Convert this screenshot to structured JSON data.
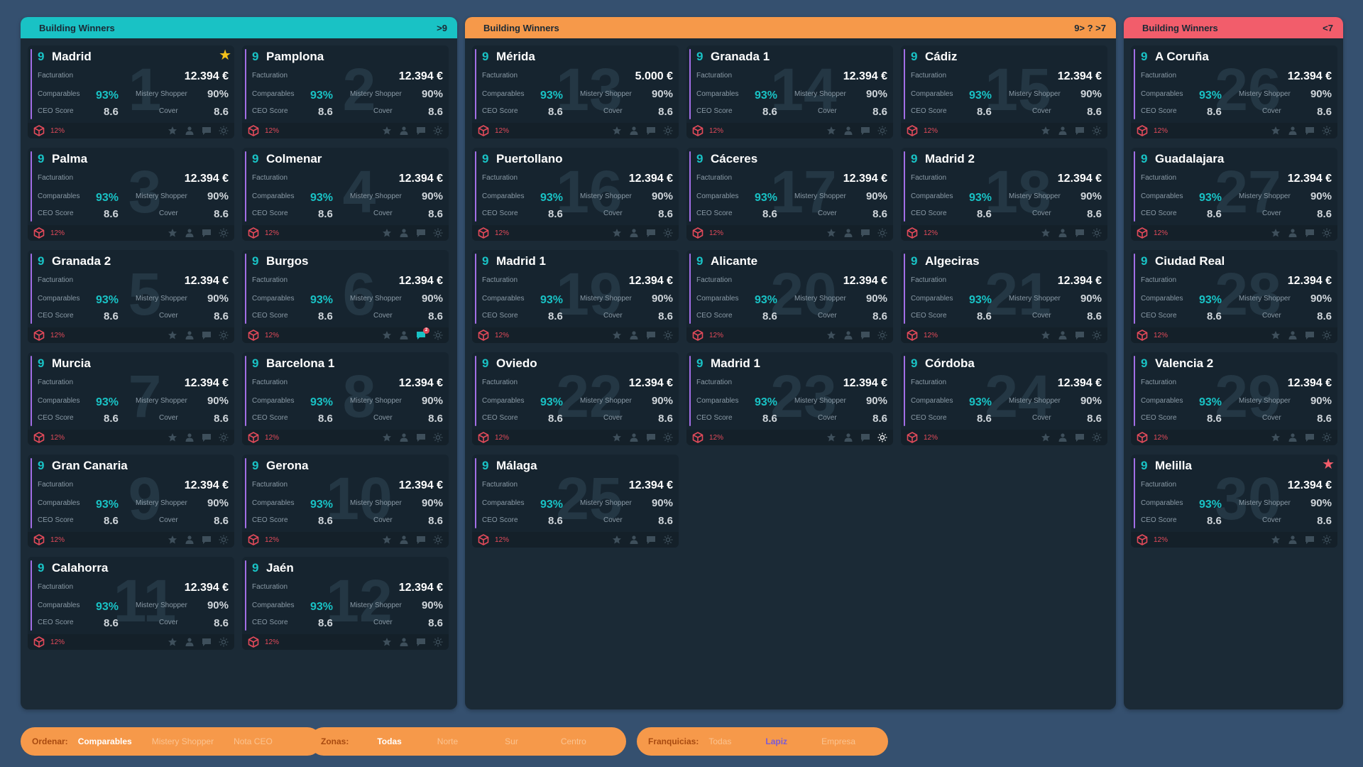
{
  "colors": {
    "background": "#35506f",
    "panel": "#1b2a36",
    "card": "#16242f",
    "accent_teal": "#19c2c5",
    "accent_orange": "#f6994a",
    "accent_red": "#f25d6b",
    "accent_purple": "#a26ee6",
    "alert_red": "#e24a5a"
  },
  "labels": {
    "facturation": "Facturation",
    "comparables": "Comparables",
    "mistery": "Mistery Shopper",
    "ceo": "CEO Score",
    "cover": "Cover"
  },
  "panels": [
    {
      "title": "Building Winners",
      "range": ">9",
      "color": "#19c2c5",
      "cards": [
        {
          "rank": "9",
          "name": "Madrid",
          "ghost": "1",
          "facturation": "12.394 €",
          "comparables": "93%",
          "mistery": "90%",
          "ceo": "8.6",
          "cover": "8.6",
          "alert": "12%",
          "star": "yellow"
        },
        {
          "rank": "9",
          "name": "Pamplona",
          "ghost": "2",
          "facturation": "12.394 €",
          "comparables": "93%",
          "mistery": "90%",
          "ceo": "8.6",
          "cover": "8.6",
          "alert": "12%"
        },
        {
          "rank": "9",
          "name": "Palma",
          "ghost": "3",
          "facturation": "12.394 €",
          "comparables": "93%",
          "mistery": "90%",
          "ceo": "8.6",
          "cover": "8.6",
          "alert": "12%"
        },
        {
          "rank": "9",
          "name": "Colmenar",
          "ghost": "4",
          "facturation": "12.394 €",
          "comparables": "93%",
          "mistery": "90%",
          "ceo": "8.6",
          "cover": "8.6",
          "alert": "12%"
        },
        {
          "rank": "9",
          "name": "Granada 2",
          "ghost": "5",
          "facturation": "12.394 €",
          "comparables": "93%",
          "mistery": "90%",
          "ceo": "8.6",
          "cover": "8.6",
          "alert": "12%"
        },
        {
          "rank": "9",
          "name": "Burgos",
          "ghost": "6",
          "facturation": "12.394 €",
          "comparables": "93%",
          "mistery": "90%",
          "ceo": "8.6",
          "cover": "8.6",
          "alert": "12%",
          "chat_badge": "2"
        },
        {
          "rank": "9",
          "name": "Murcia",
          "ghost": "7",
          "facturation": "12.394 €",
          "comparables": "93%",
          "mistery": "90%",
          "ceo": "8.6",
          "cover": "8.6",
          "alert": "12%"
        },
        {
          "rank": "9",
          "name": "Barcelona 1",
          "ghost": "8",
          "facturation": "12.394 €",
          "comparables": "93%",
          "mistery": "90%",
          "ceo": "8.6",
          "cover": "8.6",
          "alert": "12%"
        },
        {
          "rank": "9",
          "name": "Gran Canaria",
          "ghost": "9",
          "facturation": "12.394 €",
          "comparables": "93%",
          "mistery": "90%",
          "ceo": "8.6",
          "cover": "8.6",
          "alert": "12%"
        },
        {
          "rank": "9",
          "name": "Gerona",
          "ghost": "10",
          "facturation": "12.394 €",
          "comparables": "93%",
          "mistery": "90%",
          "ceo": "8.6",
          "cover": "8.6",
          "alert": "12%"
        },
        {
          "rank": "9",
          "name": "Calahorra",
          "ghost": "11",
          "facturation": "12.394 €",
          "comparables": "93%",
          "mistery": "90%",
          "ceo": "8.6",
          "cover": "8.6",
          "alert": "12%"
        },
        {
          "rank": "9",
          "name": "Jaén",
          "ghost": "12",
          "facturation": "12.394 €",
          "comparables": "93%",
          "mistery": "90%",
          "ceo": "8.6",
          "cover": "8.6",
          "alert": "12%"
        }
      ]
    },
    {
      "title": "Building Winners",
      "range": "9> ? >7",
      "color": "#f6994a",
      "cards": [
        {
          "rank": "9",
          "name": "Mérida",
          "ghost": "13",
          "facturation": "5.000 €",
          "comparables": "93%",
          "mistery": "90%",
          "ceo": "8.6",
          "cover": "8.6",
          "alert": "12%"
        },
        {
          "rank": "9",
          "name": "Granada  1",
          "ghost": "14",
          "facturation": "12.394 €",
          "comparables": "93%",
          "mistery": "90%",
          "ceo": "8.6",
          "cover": "8.6",
          "alert": "12%"
        },
        {
          "rank": "9",
          "name": "Cádiz",
          "ghost": "15",
          "facturation": "12.394 €",
          "comparables": "93%",
          "mistery": "90%",
          "ceo": "8.6",
          "cover": "8.6",
          "alert": "12%"
        },
        {
          "rank": "9",
          "name": "Puertollano",
          "ghost": "16",
          "facturation": "12.394 €",
          "comparables": "93%",
          "mistery": "90%",
          "ceo": "8.6",
          "cover": "8.6",
          "alert": "12%"
        },
        {
          "rank": "9",
          "name": "Cáceres",
          "ghost": "17",
          "facturation": "12.394 €",
          "comparables": "93%",
          "mistery": "90%",
          "ceo": "8.6",
          "cover": "8.6",
          "alert": "12%"
        },
        {
          "rank": "9",
          "name": "Madrid 2",
          "ghost": "18",
          "facturation": "12.394 €",
          "comparables": "93%",
          "mistery": "90%",
          "ceo": "8.6",
          "cover": "8.6",
          "alert": "12%"
        },
        {
          "rank": "9",
          "name": "Madrid 1",
          "ghost": "19",
          "facturation": "12.394 €",
          "comparables": "93%",
          "mistery": "90%",
          "ceo": "8.6",
          "cover": "8.6",
          "alert": "12%"
        },
        {
          "rank": "9",
          "name": "Alicante",
          "ghost": "20",
          "facturation": "12.394 €",
          "comparables": "93%",
          "mistery": "90%",
          "ceo": "8.6",
          "cover": "8.6",
          "alert": "12%"
        },
        {
          "rank": "9",
          "name": "Algeciras",
          "ghost": "21",
          "facturation": "12.394 €",
          "comparables": "93%",
          "mistery": "90%",
          "ceo": "8.6",
          "cover": "8.6",
          "alert": "12%"
        },
        {
          "rank": "9",
          "name": "Oviedo",
          "ghost": "22",
          "facturation": "12.394 €",
          "comparables": "93%",
          "mistery": "90%",
          "ceo": "8.6",
          "cover": "8.6",
          "alert": "12%"
        },
        {
          "rank": "9",
          "name": "Madrid 1",
          "ghost": "23",
          "facturation": "12.394 €",
          "comparables": "93%",
          "mistery": "90%",
          "ceo": "8.6",
          "cover": "8.6",
          "alert": "12%",
          "sun_active": true
        },
        {
          "rank": "9",
          "name": "Córdoba",
          "ghost": "24",
          "facturation": "12.394 €",
          "comparables": "93%",
          "mistery": "90%",
          "ceo": "8.6",
          "cover": "8.6",
          "alert": "12%"
        },
        {
          "rank": "9",
          "name": "Málaga",
          "ghost": "25",
          "facturation": "12.394 €",
          "comparables": "93%",
          "mistery": "90%",
          "ceo": "8.6",
          "cover": "8.6",
          "alert": "12%"
        }
      ]
    },
    {
      "title": "Building Winners",
      "range": "<7",
      "color": "#f25d6b",
      "cards": [
        {
          "rank": "9",
          "name": "A Coruña",
          "ghost": "26",
          "facturation": "12.394 €",
          "comparables": "93%",
          "mistery": "90%",
          "ceo": "8.6",
          "cover": "8.6",
          "alert": "12%"
        },
        {
          "rank": "9",
          "name": "Guadalajara",
          "ghost": "27",
          "facturation": "12.394 €",
          "comparables": "93%",
          "mistery": "90%",
          "ceo": "8.6",
          "cover": "8.6",
          "alert": "12%"
        },
        {
          "rank": "9",
          "name": "Ciudad Real",
          "ghost": "28",
          "facturation": "12.394 €",
          "comparables": "93%",
          "mistery": "90%",
          "ceo": "8.6",
          "cover": "8.6",
          "alert": "12%"
        },
        {
          "rank": "9",
          "name": "Valencia 2",
          "ghost": "29",
          "facturation": "12.394 €",
          "comparables": "93%",
          "mistery": "90%",
          "ceo": "8.6",
          "cover": "8.6",
          "alert": "12%"
        },
        {
          "rank": "9",
          "name": "Melilla",
          "ghost": "30",
          "facturation": "12.394 €",
          "comparables": "93%",
          "mistery": "90%",
          "ceo": "8.6",
          "cover": "8.6",
          "alert": "12%",
          "star": "red"
        }
      ]
    }
  ],
  "filters": {
    "ordenar": {
      "label": "Ordenar:",
      "options": [
        "Comparables",
        "Mistery Shopper",
        "Nota CEO"
      ],
      "active": 0
    },
    "zonas": {
      "label": "Zonas:",
      "options": [
        "Todas",
        "Norte",
        "Sur",
        "Centro"
      ],
      "active": 0
    },
    "franquicias": {
      "label": "Franquicias:",
      "options": [
        "Todas",
        "Lapiz",
        "Empresa"
      ],
      "active": 1
    }
  }
}
